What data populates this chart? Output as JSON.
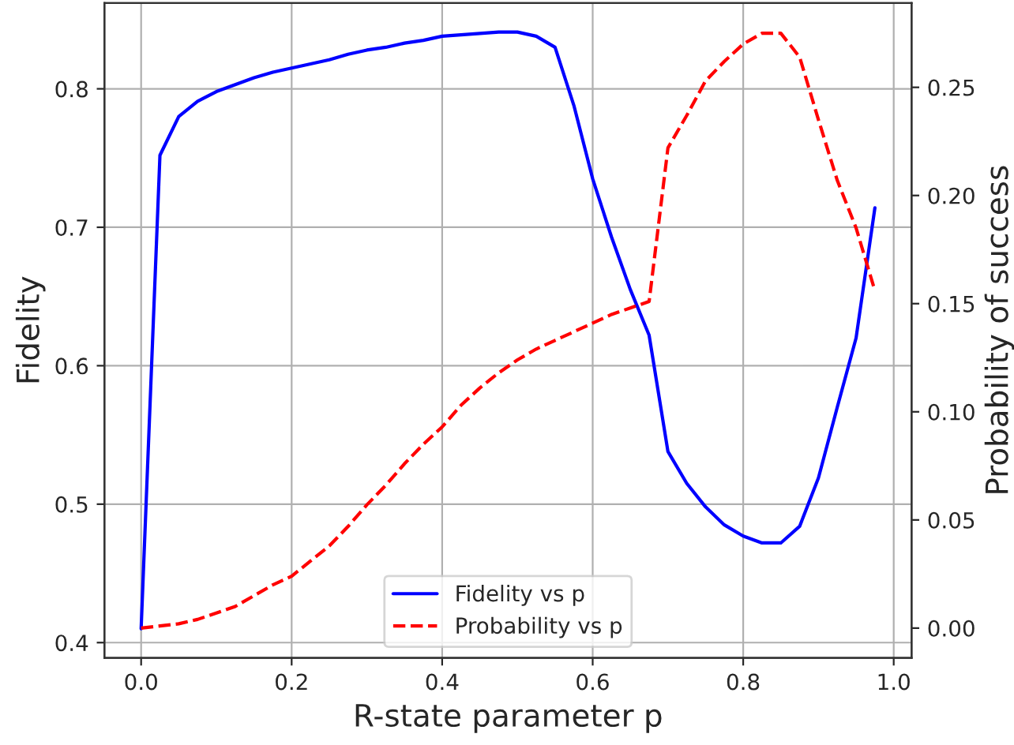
{
  "chart_data": {
    "type": "line",
    "x": [
      0,
      0.025,
      0.05,
      0.075,
      0.1,
      0.125,
      0.15,
      0.175,
      0.2,
      0.225,
      0.25,
      0.275,
      0.3,
      0.325,
      0.35,
      0.375,
      0.4,
      0.425,
      0.45,
      0.475,
      0.5,
      0.525,
      0.55,
      0.575,
      0.6,
      0.625,
      0.65,
      0.675,
      0.7,
      0.725,
      0.75,
      0.775,
      0.8,
      0.825,
      0.85,
      0.875,
      0.9,
      0.925,
      0.95,
      0.975
    ],
    "series": [
      {
        "name": "Fidelity vs p",
        "color": "#0000ff",
        "line_style": "solid",
        "axis": "y",
        "values": [
          0.41,
          0.752,
          0.78,
          0.791,
          0.798,
          0.803,
          0.808,
          0.812,
          0.815,
          0.818,
          0.821,
          0.825,
          0.828,
          0.83,
          0.833,
          0.835,
          0.838,
          0.839,
          0.84,
          0.841,
          0.841,
          0.838,
          0.83,
          0.788,
          0.735,
          0.693,
          0.655,
          0.622,
          0.538,
          0.515,
          0.498,
          0.485,
          0.477,
          0.472,
          0.472,
          0.484,
          0.519,
          0.57,
          0.62,
          0.714
        ]
      },
      {
        "name": "Probability vs p",
        "color": "#ff0000",
        "line_style": "dashed",
        "axis": "y2",
        "values": [
          0.0,
          0.001,
          0.002,
          0.004,
          0.007,
          0.01,
          0.015,
          0.02,
          0.024,
          0.031,
          0.038,
          0.047,
          0.057,
          0.066,
          0.076,
          0.085,
          0.093,
          0.103,
          0.111,
          0.118,
          0.124,
          0.129,
          0.133,
          0.137,
          0.141,
          0.145,
          0.148,
          0.151,
          0.222,
          0.237,
          0.253,
          0.262,
          0.27,
          0.275,
          0.275,
          0.264,
          0.235,
          0.207,
          0.185,
          0.156
        ]
      }
    ],
    "xlabel": "R-state parameter p",
    "ylabel": "Fidelity",
    "y2label": "Probability of success",
    "xlim": [
      -0.04875,
      1.02375
    ],
    "xticks": [
      {
        "value": 0,
        "label": "0.0"
      },
      0.2,
      0.4,
      0.6,
      0.8,
      {
        "value": 1,
        "label": "1.0"
      }
    ],
    "ylim": [
      0.389,
      0.862
    ],
    "yticks": [
      0.4,
      0.5,
      0.6,
      0.7,
      0.8
    ],
    "y2lim": [
      -0.01375,
      0.289
    ],
    "y2ticks": [
      {
        "value": 0,
        "label": "0.00"
      },
      0.05,
      {
        "value": 0.1,
        "label": "0.10"
      },
      0.15,
      {
        "value": 0.2,
        "label": "0.20"
      },
      0.25
    ],
    "grid": true,
    "legend": "bottom",
    "marker": "none"
  }
}
